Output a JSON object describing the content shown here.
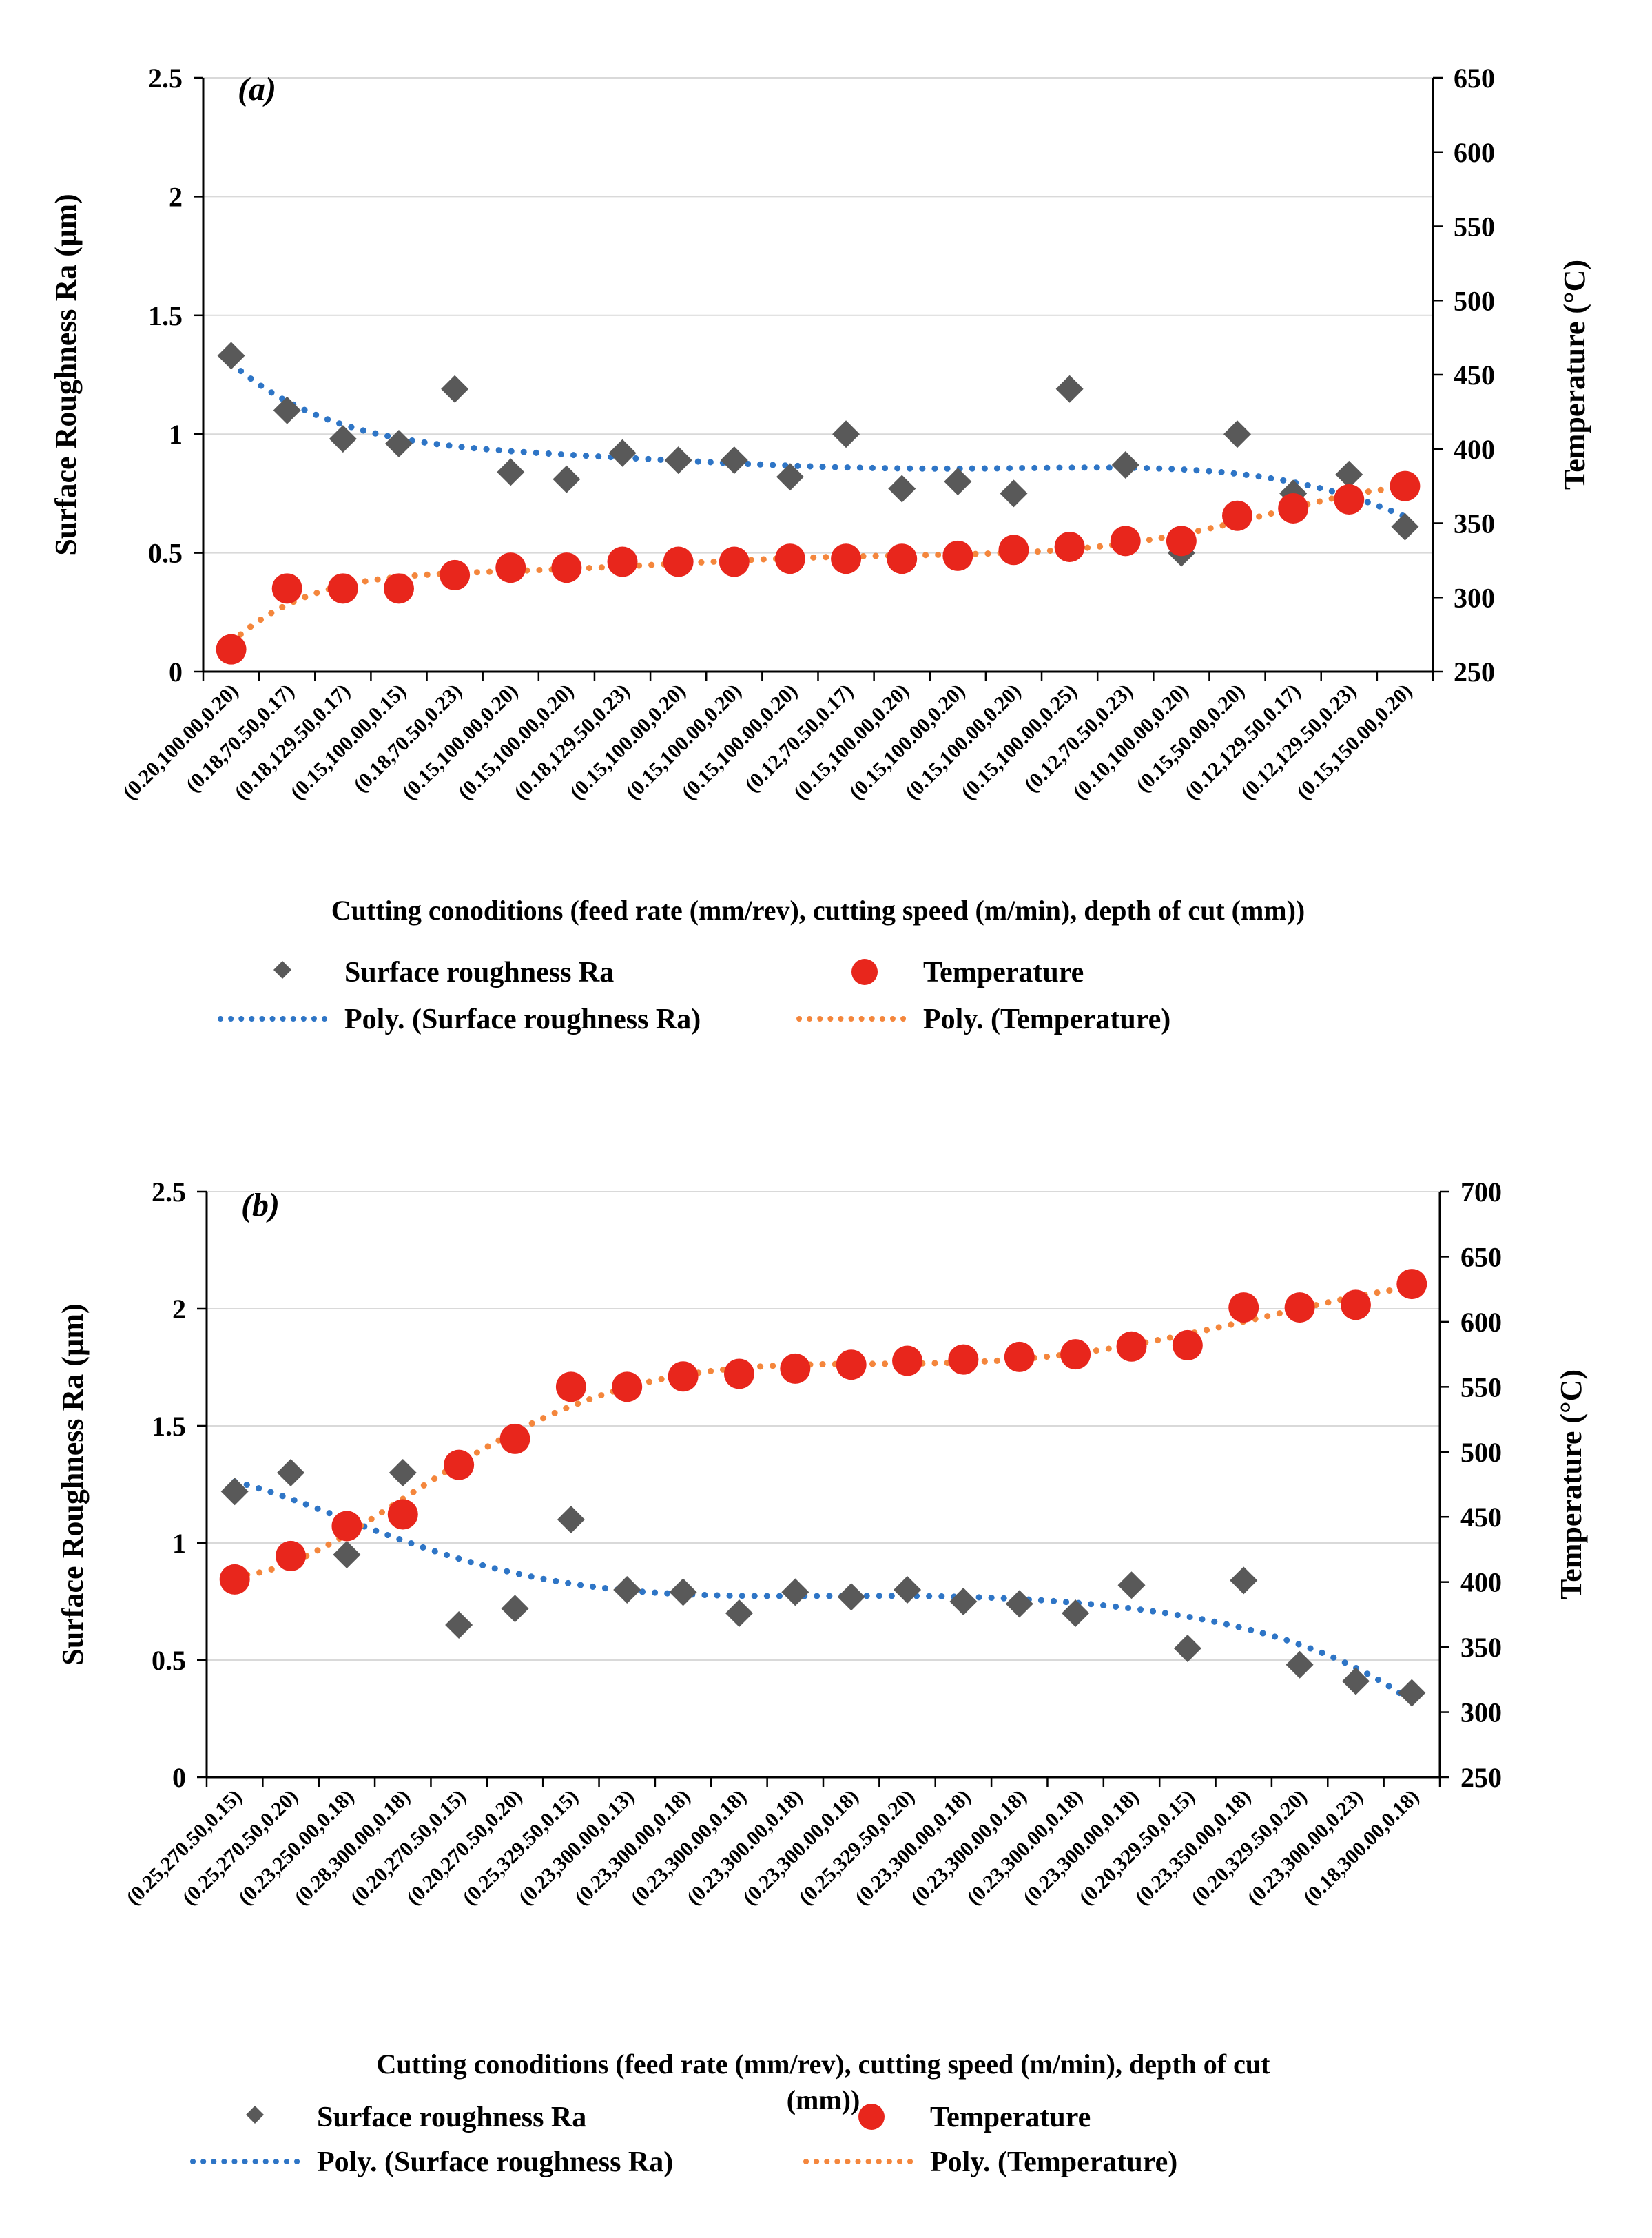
{
  "chart_data": [
    {
      "type": "scatter",
      "panel_label": "(a)",
      "categories": [
        "(0.20,100.00,0.20)",
        "(0.18,70.50,0.17)",
        "(0.18,129.50,0.17)",
        "(0.15,100.00,0.15)",
        "(0.18,70.50,0.23)",
        "(0.15,100.00,0.20)",
        "(0.15,100.00,0.20)",
        "(0.18,129.50,0.23)",
        "(0.15,100.00,0.20)",
        "(0.15,100.00,0.20)",
        "(0.15,100.00,0.20)",
        "(0.12,70.50,0.17)",
        "(0.15,100.00,0.20)",
        "(0.15,100.00,0.20)",
        "(0.15,100.00,0.20)",
        "(0.15,100.00,0.25)",
        "(0.12,70.50,0.23)",
        "(0.10,100.00,0.20)",
        "(0.15,50.00,0.20)",
        "(0.12,129.50,0.17)",
        "(0.12,129.50,0.23)",
        "(0.15,150.00,0.20)"
      ],
      "series": [
        {
          "name": "Surface roughness Ra",
          "axis": "left",
          "marker": "diamond",
          "color": "#595959",
          "values": [
            1.33,
            1.1,
            0.98,
            0.96,
            1.19,
            0.84,
            0.81,
            0.92,
            0.89,
            0.89,
            0.82,
            1.0,
            0.77,
            0.8,
            0.75,
            1.19,
            0.87,
            0.5,
            1.0,
            0.75,
            0.83,
            0.61
          ]
        },
        {
          "name": "Temperature",
          "axis": "right",
          "marker": "circle",
          "color": "#e8261c",
          "values": [
            265,
            306,
            306,
            306,
            315,
            320,
            320,
            324,
            324,
            324,
            326,
            326,
            326,
            328,
            332,
            334,
            338,
            338,
            355,
            360,
            366,
            375
          ]
        }
      ],
      "trendlines": [
        {
          "name": "Poly. (Surface roughness Ra)",
          "color": "#2e75c6",
          "order": 6
        },
        {
          "name": "Poly. (Temperature)",
          "color": "#f4863c",
          "order": 6
        }
      ],
      "xlabel": "Cutting conoditions (feed rate (mm/rev), cutting speed (m/min), depth of cut (mm))",
      "ylabel": "Surface Roughness Ra (µm)",
      "y2label": "Temperature (°C)",
      "ylim": [
        0,
        2.5
      ],
      "yticks": [
        "0",
        "0.5",
        "1",
        "1.5",
        "2",
        "2.5"
      ],
      "y2lim": [
        250,
        650
      ],
      "y2ticks": [
        "250",
        "300",
        "350",
        "400",
        "450",
        "500",
        "550",
        "600",
        "650"
      ],
      "grid": true,
      "legend": [
        "Surface roughness Ra",
        "Temperature",
        "Poly. (Surface roughness Ra)",
        "Poly. (Temperature)"
      ]
    },
    {
      "type": "scatter",
      "panel_label": "(b)",
      "categories": [
        "(0.25,270.50,0.15)",
        "(0.25,270.50,0.20)",
        "(0.23,250.00,0.18)",
        "(0.28,300.00,0.18)",
        "(0.20,270.50,0.15)",
        "(0.20,270.50,0.20)",
        "(0.25,329.50,0.15)",
        "(0.23,300.00,0.13)",
        "(0.23,300.00,0.18)",
        "(0.23,300.00,0.18)",
        "(0.23,300.00,0.18)",
        "(0.23,300.00,0.18)",
        "(0.25,329.50,0.20)",
        "(0.23,300.00,0.18)",
        "(0.23,300.00,0.18)",
        "(0.23,300.00,0.18)",
        "(0.23,300.00,0.18)",
        "(0.20,329.50,0.15)",
        "(0.23,350.00,0.18)",
        "(0.20,329.50,0.20)",
        "(0.23,300.00,0.23)",
        "(0.18,300.00,0.18)"
      ],
      "series": [
        {
          "name": "Surface roughness Ra",
          "axis": "left",
          "marker": "diamond",
          "color": "#595959",
          "values": [
            1.22,
            1.3,
            0.95,
            1.3,
            0.65,
            0.72,
            1.1,
            0.8,
            0.79,
            0.7,
            0.79,
            0.77,
            0.8,
            0.75,
            0.74,
            0.7,
            0.82,
            0.55,
            0.84,
            0.48,
            0.41,
            0.36
          ]
        },
        {
          "name": "Temperature",
          "axis": "right",
          "marker": "circle",
          "color": "#e8261c",
          "values": [
            402,
            420,
            443,
            452,
            490,
            510,
            550,
            550,
            558,
            560,
            564,
            567,
            570,
            571,
            573,
            575,
            581,
            582,
            611,
            611,
            613,
            629
          ]
        }
      ],
      "trendlines": [
        {
          "name": "Poly. (Surface roughness Ra)",
          "color": "#2e75c6",
          "order": 6
        },
        {
          "name": "Poly. (Temperature)",
          "color": "#f4863c",
          "order": 6
        }
      ],
      "xlabel": "Cutting conoditions (feed rate (mm/rev), cutting speed (m/min), depth of cut (mm))",
      "ylabel": "Surface Roughness Ra (µm)",
      "y2label": "Temperature (°C)",
      "ylim": [
        0,
        2.5
      ],
      "yticks": [
        "0",
        "0.5",
        "1",
        "1.5",
        "2",
        "2.5"
      ],
      "y2lim": [
        250,
        700
      ],
      "y2ticks": [
        "250",
        "300",
        "350",
        "400",
        "450",
        "500",
        "550",
        "600",
        "650",
        "700"
      ],
      "grid": true,
      "legend": [
        "Surface roughness Ra",
        "Temperature",
        "Poly. (Surface roughness Ra)",
        "Poly. (Temperature)"
      ]
    }
  ]
}
